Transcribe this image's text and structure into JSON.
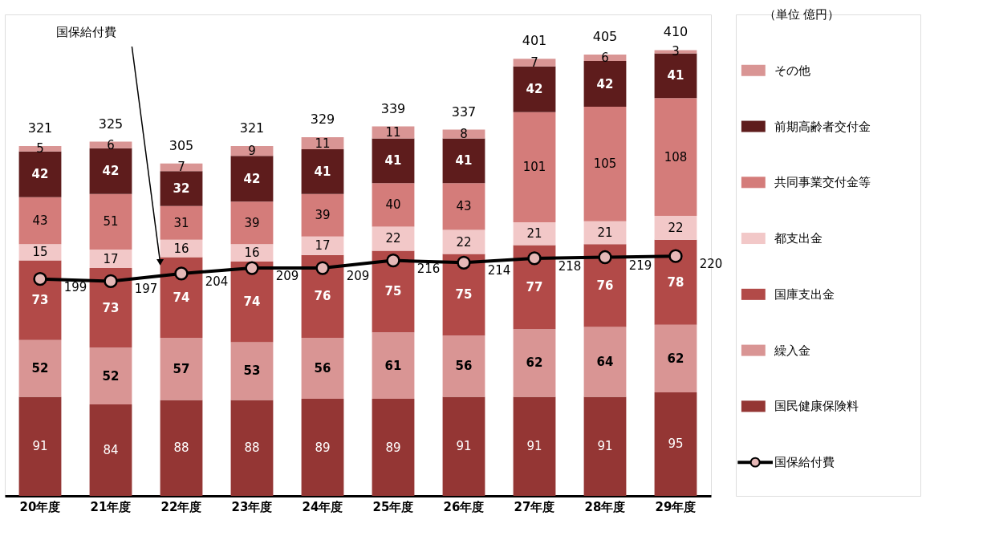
{
  "chart_data": {
    "type": "bar",
    "stacked": true,
    "data_labels": true,
    "legend": "right",
    "categories": [
      "20年度",
      "21年度",
      "22年度",
      "23年度",
      "24年度",
      "25年度",
      "26年度",
      "27年度",
      "28年度",
      "29年度"
    ],
    "series": [
      {
        "name": "国民健康保険料",
        "color": "#943634",
        "values": [
          91,
          84,
          88,
          88,
          89,
          89,
          91,
          91,
          91,
          95
        ]
      },
      {
        "name": "繰入金",
        "color": "#d99594",
        "values": [
          52,
          52,
          57,
          53,
          56,
          61,
          56,
          62,
          64,
          62
        ]
      },
      {
        "name": "国庫支出金",
        "color": "#b24a48",
        "values": [
          73,
          73,
          74,
          74,
          76,
          75,
          75,
          77,
          76,
          78
        ]
      },
      {
        "name": "都支出金",
        "color": "#f2c8c8",
        "values": [
          15,
          17,
          16,
          16,
          17,
          22,
          22,
          21,
          21,
          22
        ]
      },
      {
        "name": "共同事業交付金等",
        "color": "#d47c7a",
        "values": [
          43,
          51,
          31,
          39,
          39,
          40,
          43,
          101,
          105,
          108
        ]
      },
      {
        "name": "前期高齢者交付金",
        "color": "#5e1c1c",
        "values": [
          42,
          42,
          32,
          42,
          41,
          41,
          41,
          42,
          42,
          41
        ]
      },
      {
        "name": "その他",
        "color": "#d99594",
        "values": [
          5,
          6,
          7,
          9,
          11,
          11,
          8,
          7,
          6,
          3
        ]
      },
      {
        "name": "国保給付費",
        "type": "line",
        "color": "#000000",
        "marker": "circle",
        "line_style": "solid",
        "values": [
          199,
          197,
          204,
          209,
          209,
          216,
          214,
          218,
          219,
          220
        ]
      }
    ],
    "totals": [
      "321",
      "325",
      "305",
      "321",
      "329",
      "339",
      "337",
      "401",
      "405",
      "410"
    ],
    "annotations": [
      "国保給付費",
      "（単位  億円）"
    ]
  }
}
